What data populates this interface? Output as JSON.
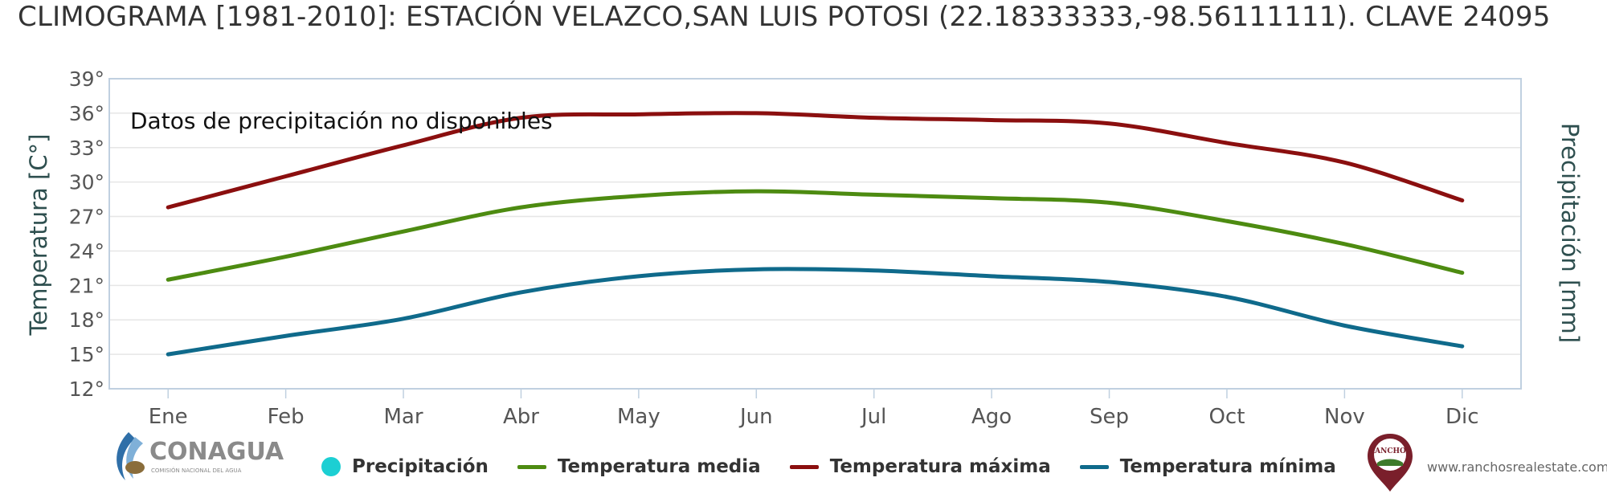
{
  "chart_data": {
    "type": "line",
    "title": "CLIMOGRAMA [1981-2010]: ESTACIÓN VELAZCO,SAN LUIS POTOSI (22.18333333,-98.56111111). CLAVE 24095",
    "annotation": "Datos de precipitación no disponibles",
    "categories": [
      "Ene",
      "Feb",
      "Mar",
      "Abr",
      "May",
      "Jun",
      "Jul",
      "Ago",
      "Sep",
      "Oct",
      "Nov",
      "Dic"
    ],
    "ylabel_left": "Temperatura [C°]",
    "ylabel_right": "Precipitación [mm]",
    "ylim": [
      12,
      39
    ],
    "yticks": [
      12,
      15,
      18,
      21,
      24,
      27,
      30,
      33,
      36,
      39
    ],
    "ytick_suffix": "°",
    "grid": true,
    "legend_position": "bottom",
    "legend": [
      {
        "name": "Precipitación",
        "color": "#1ccfd3",
        "symbol": "dot"
      },
      {
        "name": "Temperatura media",
        "color": "#4d8b11",
        "symbol": "line"
      },
      {
        "name": "Temperatura máxima",
        "color": "#8b0f0f",
        "symbol": "line"
      },
      {
        "name": "Temperatura mínima",
        "color": "#0f6a8b",
        "symbol": "line"
      }
    ],
    "series": [
      {
        "name": "Temperatura máxima",
        "color": "#8b0f0f",
        "values": [
          27.8,
          30.5,
          33.2,
          35.6,
          35.9,
          36.0,
          35.6,
          35.4,
          35.1,
          33.4,
          31.7,
          28.4
        ]
      },
      {
        "name": "Temperatura media",
        "color": "#4d8b11",
        "values": [
          21.5,
          23.5,
          25.7,
          27.8,
          28.8,
          29.2,
          28.9,
          28.6,
          28.2,
          26.6,
          24.6,
          22.1
        ]
      },
      {
        "name": "Temperatura mínima",
        "color": "#0f6a8b",
        "values": [
          15.0,
          16.6,
          18.1,
          20.4,
          21.8,
          22.4,
          22.3,
          21.8,
          21.3,
          20.0,
          17.5,
          15.7
        ]
      }
    ]
  },
  "logos": {
    "left_name": "CONAGUA",
    "left_subtitle": "COMISIÓN NACIONAL DEL AGUA",
    "right_name": "RANCHOS",
    "right_url": "www.ranchosrealestate.com"
  },
  "colors": {
    "axis_text": "#555555",
    "axis_title": "#2e4f4f",
    "grid": "#e6e6e6",
    "plot_border": "#c0d0e0"
  }
}
